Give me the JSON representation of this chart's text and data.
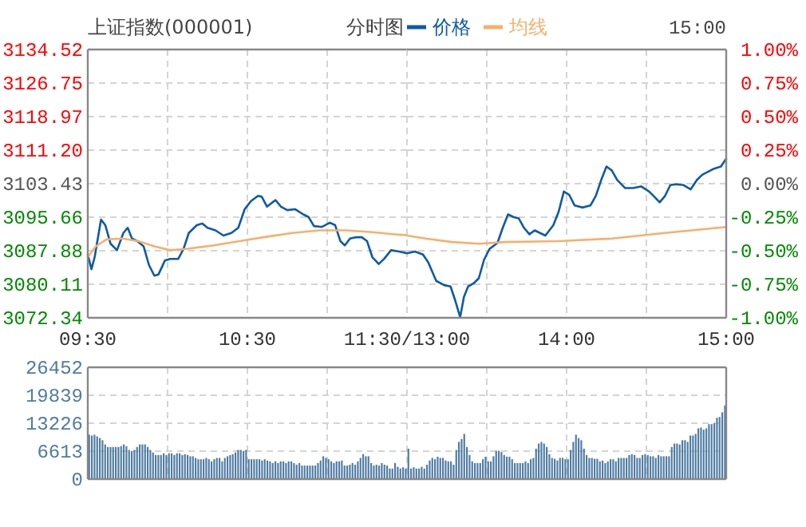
{
  "chart_data": [
    {
      "type": "line",
      "title": "上证指数(000001)",
      "subtitle": "分时图",
      "legend": "top",
      "grid": true,
      "marker": "none",
      "line_style": "solid",
      "xlim": [
        9.5,
        11.5
      ],
      "xticks": [
        {
          "value": 9.5,
          "label": "09:30"
        },
        {
          "value": 10,
          "label": null
        },
        {
          "value": 10.5,
          "label": "10:30"
        },
        {
          "value": 11,
          "label": null
        },
        {
          "value": 11.5,
          "label": "11:30/13:00"
        }
      ],
      "ylim": [
        3072.34,
        3134.52
      ],
      "yticks": [
        3072.34,
        3080.11,
        3087.88,
        3095.66,
        3103.43,
        {
          "value": 3111.2,
          "label": "3111.20"
        },
        3118.97,
        3126.75,
        3134.52
      ],
      "series": [
        {
          "name": "价格",
          "color": "#0e5aa7",
          "x": [
            9.5,
            9.523,
            9.543,
            9.583,
            9.61,
            9.643,
            9.683,
            9.723,
            9.75,
            9.777,
            9.81,
            9.85,
            9.883,
            9.917,
            9.943,
            9.983,
            10.017,
            10.067,
            10.1,
            10.133,
            10.183,
            10.217,
            10.25,
            10.3,
            10.35,
            10.4,
            10.443,
            10.483,
            10.523,
            10.567,
            10.59,
            10.623,
            10.657,
            10.677,
            10.71,
            10.75,
            10.8,
            10.85,
            10.883,
            10.917,
            10.967,
            11.017,
            11.05,
            11.083,
            11.11,
            11.143,
            11.177,
            11.217,
            11.25,
            11.283,
            11.323,
            11.357,
            11.4,
            11.45,
            11.5
          ],
          "values": [
            3087.0,
            3083.6,
            3086.4,
            3095.1,
            3093.8,
            3089.5,
            3088.0,
            3092.0,
            3093.2,
            3090.7,
            3090.1,
            3088.9,
            3084.6,
            3082.1,
            3082.4,
            3085.6,
            3086.0,
            3086.0,
            3088.3,
            3092.0,
            3093.8,
            3094.2,
            3093.2,
            3092.6,
            3091.4,
            3092.0,
            3093.2,
            3097.5,
            3099.4,
            3100.6,
            3100.4,
            3098.1,
            3099.1,
            3099.6,
            3098.1,
            3097.3,
            3097.5,
            3096.3,
            3095.7,
            3093.6,
            3093.4,
            3094.4,
            3093.8,
            3090.1,
            3089.1,
            3090.7,
            3091.0,
            3091.0,
            3090.1,
            3086.4,
            3084.8,
            3086.0,
            3088.0,
            3087.7,
            3087.3
          ]
        },
        {
          "name": "均线",
          "color": "#f5b06c",
          "x": [
            9.5,
            9.55,
            9.617,
            9.717,
            9.817,
            9.917,
            10.017,
            10.117,
            10.283,
            10.45,
            10.617,
            10.783,
            10.95,
            11.117,
            11.283,
            11.45,
            11.5
          ],
          "values": [
            3086.4,
            3088.9,
            3090.5,
            3090.7,
            3090.1,
            3088.9,
            3088.0,
            3088.3,
            3089.1,
            3090.1,
            3091.1,
            3092.0,
            3092.6,
            3092.6,
            3092.2,
            3091.6,
            3091.5
          ]
        }
      ]
    },
    {
      "type": "line",
      "annotations": [
        "15:00"
      ],
      "grid": true,
      "marker": "none",
      "line_style": "solid",
      "tick_labels": "x",
      "xlim": [
        13,
        15
      ],
      "xticks": [
        {
          "value": 13,
          "label": null
        },
        {
          "value": 13.5,
          "label": null
        },
        {
          "value": 14,
          "label": "14:00"
        },
        {
          "value": 14.5,
          "label": null
        },
        {
          "value": 15,
          "label": "15:00"
        }
      ],
      "ylim": [
        3072.34,
        3134.52
      ],
      "yticks": [
        3072.34,
        3080.11,
        3087.88,
        3095.66,
        3103.43,
        3111.2,
        3118.97,
        3126.75,
        3134.52
      ],
      "y2lim": [
        -1,
        1
      ],
      "y2ticks": [
        {
          "value": -1,
          "label": "-1.00%"
        },
        {
          "value": -0.75,
          "label": "-0.75%"
        },
        {
          "value": -0.5,
          "label": "-0.50%"
        },
        {
          "value": -0.25,
          "label": "-0.25%"
        },
        {
          "value": 0,
          "label": "0.00%"
        },
        {
          "value": 0.25,
          "label": "0.25%"
        },
        {
          "value": 0.5,
          "label": "0.50%"
        },
        {
          "value": 0.75,
          "label": "0.75%"
        },
        {
          "value": 1,
          "label": "1.00%"
        }
      ],
      "series": [
        {
          "color": "#0e5aa7",
          "x": [
            13,
            13.05,
            13.1,
            13.133,
            13.183,
            13.233,
            13.273,
            13.3,
            13.333,
            13.357,
            13.383,
            13.417,
            13.45,
            13.483,
            13.517,
            13.567,
            13.6,
            13.633,
            13.667,
            13.7,
            13.733,
            13.767,
            13.8,
            13.833,
            13.867,
            13.917,
            13.95,
            13.983,
            14.017,
            14.05,
            14.1,
            14.15,
            14.183,
            14.217,
            14.25,
            14.283,
            14.317,
            14.367,
            14.417,
            14.467,
            14.517,
            14.55,
            14.583,
            14.617,
            14.65,
            14.683,
            14.733,
            14.777,
            14.817,
            14.85,
            14.917,
            14.967,
            15
          ],
          "values": [
            3087.3,
            3087.7,
            3087.0,
            3085.2,
            3080.9,
            3079.9,
            3079.6,
            3076.6,
            3072.5,
            3077.2,
            3079.6,
            3080.3,
            3081.5,
            3085.8,
            3088.3,
            3089.7,
            3093.2,
            3096.3,
            3095.7,
            3095.4,
            3093.2,
            3091.7,
            3092.6,
            3092.0,
            3091.4,
            3093.8,
            3096.9,
            3101.6,
            3100.8,
            3098.4,
            3097.9,
            3098.4,
            3100.6,
            3104.3,
            3107.4,
            3106.5,
            3104.3,
            3102.4,
            3102.4,
            3102.8,
            3101.6,
            3100.4,
            3099.1,
            3100.6,
            3103.1,
            3103.3,
            3103.1,
            3102.1,
            3104.3,
            3105.5,
            3106.8,
            3107.4,
            3109.2
          ]
        },
        {
          "color": "#f5b06c",
          "x": [
            13,
            13.117,
            13.283,
            13.45,
            13.617,
            13.95,
            14.283,
            14.617,
            15
          ],
          "values": [
            3091.4,
            3090.7,
            3089.9,
            3089.5,
            3089.9,
            3090.1,
            3090.7,
            3092.0,
            3093.4
          ]
        }
      ]
    },
    {
      "type": "bar",
      "grid": true,
      "tick_labels": "y",
      "color": "#4f7ca3",
      "ylim": [
        0,
        26452
      ],
      "yticks": [
        0,
        6613,
        13226,
        19839,
        26452
      ],
      "categories": [
        null,
        null,
        null,
        null,
        null,
        null,
        null,
        null,
        null,
        null,
        null,
        null,
        null,
        null,
        null,
        null,
        null,
        null,
        null,
        null,
        null,
        null,
        null,
        null,
        null,
        null,
        null,
        null,
        null,
        null,
        null,
        null,
        null,
        null,
        null,
        null,
        null,
        null,
        null,
        null,
        null,
        null,
        null,
        null,
        null,
        null,
        null,
        null,
        null,
        null,
        null,
        null,
        null,
        null,
        null,
        null,
        null,
        null,
        null,
        null,
        null,
        null,
        null,
        null,
        null,
        null,
        null,
        null,
        null,
        null,
        null,
        null,
        null,
        null,
        null,
        null,
        null,
        null,
        null,
        null,
        null,
        null,
        null,
        null,
        null,
        null,
        null,
        null,
        null,
        null,
        null,
        null,
        null,
        null,
        null,
        null,
        null,
        null,
        null,
        null,
        null,
        null,
        null,
        null,
        null,
        null,
        null,
        null,
        null,
        null,
        null,
        null,
        null,
        null,
        null,
        null,
        null,
        null,
        null,
        null,
        null,
        null,
        null,
        null,
        null,
        null,
        null,
        null,
        null,
        null,
        null,
        null,
        null,
        null,
        null,
        null,
        null,
        null,
        null,
        null,
        null,
        null,
        null,
        null,
        null,
        null,
        null,
        null,
        null,
        null,
        null,
        null,
        null,
        null,
        null,
        null,
        null,
        null,
        null,
        null,
        null,
        null,
        null,
        null,
        null,
        null,
        null,
        null,
        null,
        null,
        null,
        null,
        null,
        null,
        null,
        null,
        null,
        null,
        null,
        null,
        null,
        null,
        null,
        null,
        null,
        null,
        null,
        null,
        null,
        null,
        null,
        null,
        null,
        null,
        null,
        null,
        null,
        null,
        null,
        null,
        null,
        null,
        null,
        null,
        null,
        null,
        null,
        null,
        null,
        null,
        null,
        null,
        null,
        null,
        null,
        null,
        null,
        null,
        null,
        null,
        null,
        null,
        null,
        null,
        null,
        null,
        null,
        null,
        null,
        null,
        null,
        null,
        null,
        null,
        null,
        null,
        null,
        null,
        null,
        null
      ],
      "values": [
        10500,
        10300,
        10500,
        10100,
        9700,
        9200,
        8200,
        7600,
        7600,
        7600,
        7600,
        7600,
        7800,
        8200,
        7800,
        6900,
        6600,
        6900,
        7600,
        8200,
        8200,
        8200,
        7600,
        6900,
        6300,
        5700,
        5700,
        5700,
        6100,
        5700,
        6100,
        6100,
        5700,
        6100,
        6100,
        5700,
        5900,
        5700,
        5400,
        5400,
        5000,
        4700,
        4700,
        4700,
        5000,
        4700,
        4200,
        4700,
        5000,
        5000,
        4200,
        5000,
        5400,
        5700,
        5900,
        6300,
        6900,
        6900,
        6600,
        6900,
        4700,
        4700,
        4700,
        4700,
        4700,
        4400,
        4700,
        4400,
        4200,
        3800,
        4200,
        3800,
        4200,
        4200,
        3800,
        4200,
        4200,
        3800,
        3400,
        3800,
        3200,
        3200,
        3200,
        3200,
        3200,
        3200,
        3800,
        4400,
        5400,
        5000,
        4700,
        4200,
        3800,
        4200,
        4200,
        4400,
        3200,
        3200,
        3400,
        3800,
        3400,
        4200,
        5000,
        5900,
        5400,
        5400,
        3800,
        3200,
        3400,
        3200,
        3800,
        3400,
        3200,
        2500,
        2500,
        3800,
        2900,
        2500,
        2800,
        2500,
        7200,
        2500,
        2800,
        2500,
        2500,
        2900,
        2500,
        3400,
        4400,
        5000,
        4700,
        5300,
        5000,
        5000,
        4400,
        4200,
        4200,
        3400,
        6900,
        8800,
        9500,
        10700,
        7600,
        5700,
        4200,
        3800,
        3800,
        3800,
        4700,
        5300,
        4200,
        4200,
        5400,
        6700,
        6700,
        6400,
        5700,
        5300,
        5300,
        4700,
        3800,
        3800,
        3800,
        3800,
        4200,
        3800,
        4700,
        5000,
        7200,
        8400,
        8800,
        8400,
        7600,
        5900,
        5000,
        4800,
        4400,
        5000,
        5000,
        4700,
        4700,
        6900,
        8800,
        10500,
        9700,
        9200,
        7200,
        5700,
        5000,
        5000,
        4800,
        4800,
        4200,
        4400,
        3800,
        4200,
        4700,
        4700,
        4200,
        5000,
        5000,
        5000,
        5000,
        5700,
        5900,
        5700,
        5000,
        5000,
        5700,
        5900,
        5700,
        5400,
        5400,
        5000,
        5700,
        5400,
        5400,
        5400,
        5400,
        7600,
        8400,
        8400,
        8200,
        9200,
        9200,
        8800,
        10300,
        10300,
        10700,
        12000,
        12200,
        11700,
        12000,
        13000,
        13000,
        13200,
        14500,
        14700,
        15800,
        17400
      ]
    }
  ]
}
